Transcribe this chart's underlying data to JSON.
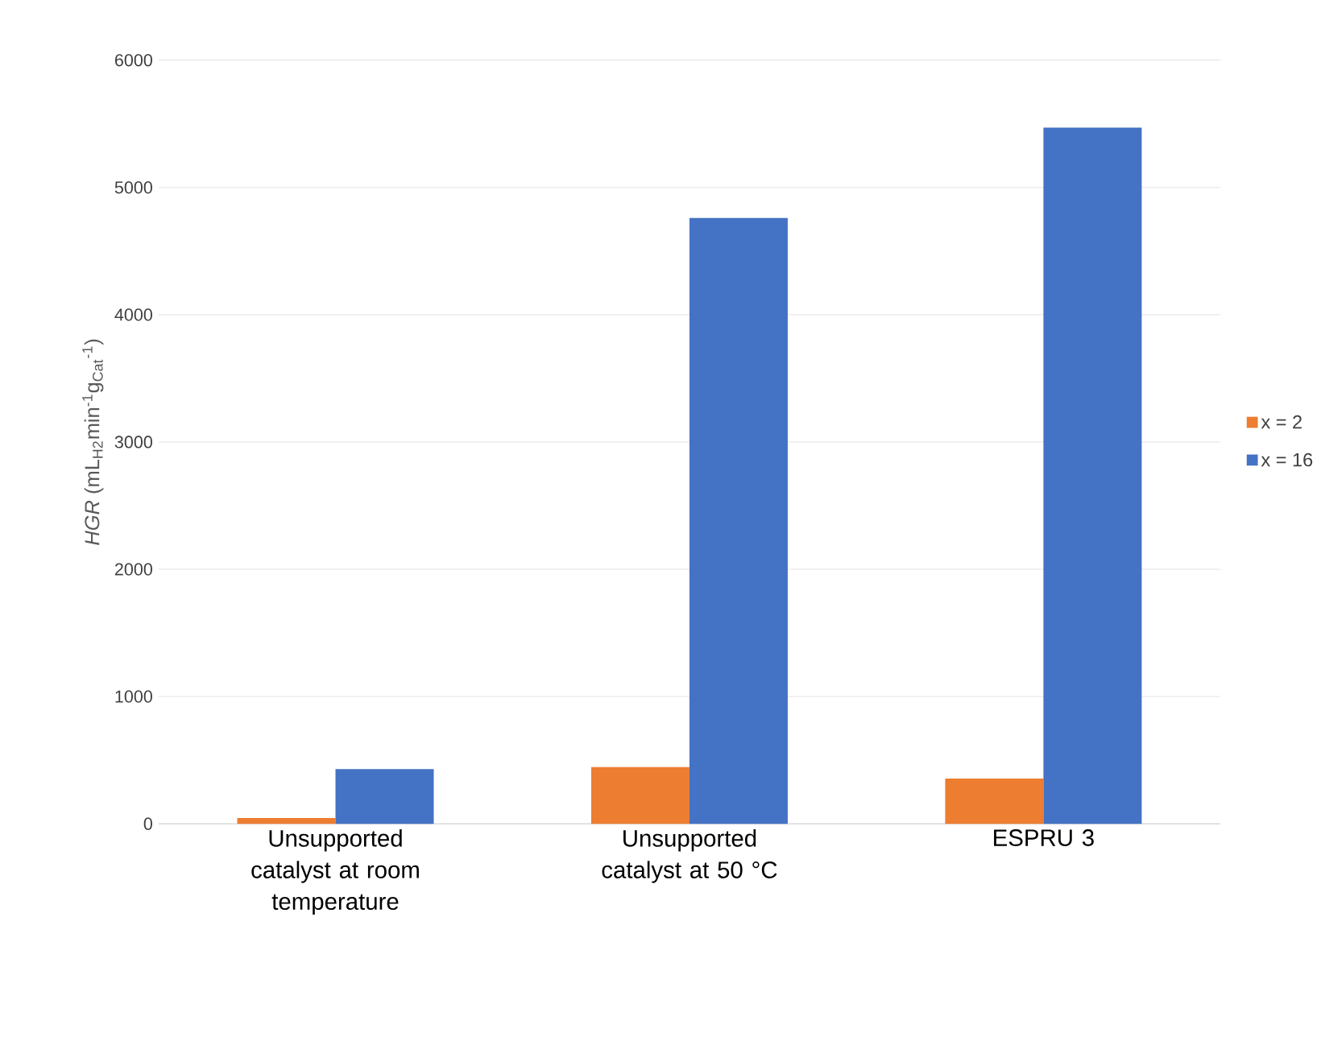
{
  "chart_data": {
    "type": "bar",
    "ylabel": "*HGR* (mL$_{H2}$min$^{-1}$g$_{Cat}$$^{-1}$)",
    "categories": [
      "Unsupported catalyst at room temperature",
      "Unsupported catalyst at 50 °C",
      "ESPRU 3"
    ],
    "series": [
      {
        "name": "x = 2",
        "color": "#ed7d31",
        "values": [
          45,
          445,
          355
        ]
      },
      {
        "name": "x = 16",
        "color": "#4472c4",
        "values": [
          430,
          4760,
          5470
        ]
      }
    ],
    "ylim": [
      0,
      6000
    ],
    "yticks": [
      0,
      1000,
      2000,
      3000,
      4000,
      5000,
      6000
    ],
    "grid": "y",
    "legend": "right"
  }
}
